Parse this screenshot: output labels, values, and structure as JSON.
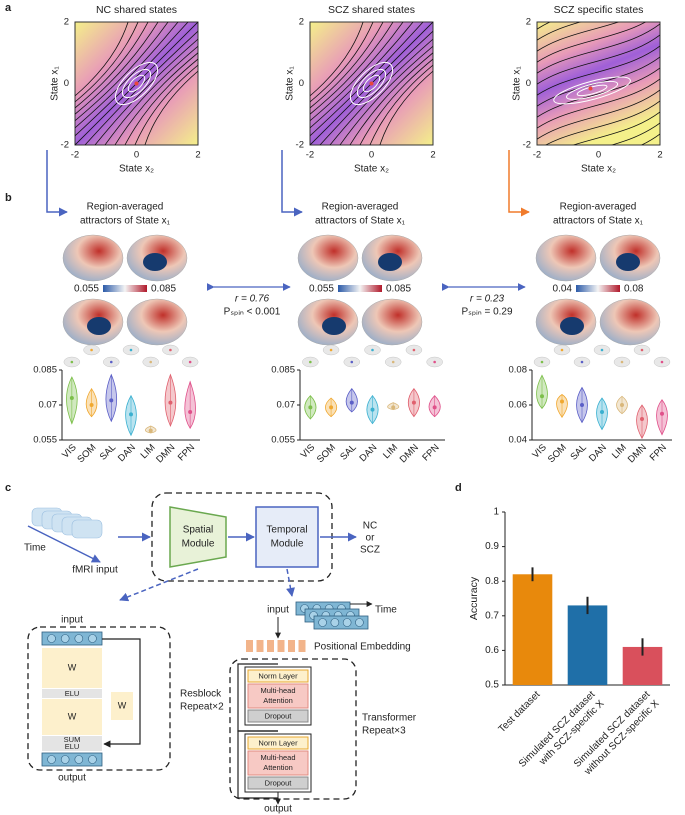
{
  "panel_labels": [
    "a",
    "b",
    "c",
    "d"
  ],
  "phase_portraits": [
    {
      "title": "NC shared states",
      "xlabel": "State x₂",
      "ylabel": "State x₁",
      "xticks": [
        -2,
        0,
        2
      ],
      "yticks": [
        -2,
        0,
        2
      ]
    },
    {
      "title": "SCZ shared states",
      "xlabel": "State x₂",
      "ylabel": "State x₁",
      "xticks": [
        -2,
        0,
        2
      ],
      "yticks": [
        -2,
        0,
        2
      ]
    },
    {
      "title": "SCZ specific states",
      "xlabel": "State x₂",
      "ylabel": "State x₁",
      "xticks": [
        -2,
        0,
        2
      ],
      "yticks": [
        -2,
        0,
        2
      ]
    }
  ],
  "attractors": [
    {
      "title": [
        "Region-averaged",
        "attractors of State x₁"
      ],
      "colorbar": [
        0.055,
        0.085
      ]
    },
    {
      "title": [
        "Region-averaged",
        "attractors of State x₁"
      ],
      "colorbar": [
        0.055,
        0.085
      ]
    },
    {
      "title": [
        "Region-averaged",
        "attractors of State x₁"
      ],
      "colorbar": [
        0.04,
        0.08
      ]
    }
  ],
  "correlations": [
    {
      "r": "r = 0.76",
      "p": "Pₛₚᵢₙ < 0.001"
    },
    {
      "r": "r = 0.23",
      "p": "Pₛₚᵢₙ = 0.29"
    }
  ],
  "diagram": {
    "time": "Time",
    "input_label": "fMRI input",
    "spatial": [
      "Spatial",
      "Module"
    ],
    "temporal": [
      "Temporal",
      "Module"
    ],
    "output": [
      "NC",
      "or",
      "SCZ"
    ],
    "resblock": {
      "input": "input",
      "w": [
        "W",
        "W",
        "W"
      ],
      "elu": [
        "ELU",
        "ELU"
      ],
      "sum": "SUM",
      "output": "output",
      "name": [
        "Resblock",
        "Repeat×2"
      ]
    },
    "transformer": {
      "input": "input",
      "time": "Time",
      "pos": "Positional Embedding",
      "layers": [
        [
          "Norm Layer"
        ],
        [
          "Multi-head",
          "Attention"
        ],
        [
          "Dropout"
        ]
      ],
      "name": [
        "Transformer",
        "Repeat×3"
      ],
      "output": "output"
    }
  },
  "chart_data": [
    {
      "type": "violin",
      "categories": [
        "VIS",
        "SOM",
        "SAL",
        "DAN",
        "LIM",
        "DMN",
        "FPN"
      ],
      "colors": [
        "#7cbf4a",
        "#f0a830",
        "#5b5fc7",
        "#3ab0d0",
        "#d9b77a",
        "#e0606e",
        "#e0508a"
      ],
      "medians": [
        0.073,
        0.07,
        0.072,
        0.066,
        0.059,
        0.071,
        0.067
      ],
      "lows": [
        0.062,
        0.065,
        0.063,
        0.057,
        0.058,
        0.061,
        0.06
      ],
      "highs": [
        0.082,
        0.077,
        0.083,
        0.074,
        0.061,
        0.083,
        0.08
      ],
      "ylim": [
        0.055,
        0.085
      ],
      "yticks": [
        0.055,
        0.07,
        0.085
      ]
    },
    {
      "type": "violin",
      "categories": [
        "VIS",
        "SOM",
        "SAL",
        "DAN",
        "LIM",
        "DMN",
        "FPN"
      ],
      "colors": [
        "#7cbf4a",
        "#f0a830",
        "#5b5fc7",
        "#3ab0d0",
        "#d9b77a",
        "#e0606e",
        "#e0508a"
      ],
      "medians": [
        0.069,
        0.069,
        0.071,
        0.068,
        0.069,
        0.071,
        0.069
      ],
      "lows": [
        0.064,
        0.065,
        0.067,
        0.062,
        0.068,
        0.065,
        0.065
      ],
      "highs": [
        0.074,
        0.073,
        0.077,
        0.074,
        0.071,
        0.077,
        0.074
      ],
      "ylim": [
        0.055,
        0.085
      ],
      "yticks": [
        0.055,
        0.07,
        0.085
      ]
    },
    {
      "type": "violin",
      "categories": [
        "VIS",
        "SOM",
        "SAL",
        "DAN",
        "LIM",
        "DMN",
        "FPN"
      ],
      "colors": [
        "#7cbf4a",
        "#f0a830",
        "#5b5fc7",
        "#3ab0d0",
        "#d9b77a",
        "#e0606e",
        "#e0508a"
      ],
      "medians": [
        0.065,
        0.062,
        0.06,
        0.056,
        0.06,
        0.052,
        0.055
      ],
      "lows": [
        0.058,
        0.053,
        0.05,
        0.046,
        0.055,
        0.041,
        0.043
      ],
      "highs": [
        0.077,
        0.066,
        0.07,
        0.064,
        0.065,
        0.06,
        0.063
      ],
      "ylim": [
        0.04,
        0.08
      ],
      "yticks": [
        0.04,
        0.06,
        0.08
      ]
    },
    {
      "type": "bar",
      "ylabel": "Accuracy",
      "categories": [
        [
          "Test dataset"
        ],
        [
          "Simulated SCZ dataset",
          "with SCZ-specific X"
        ],
        [
          "Simulated SCZ dataset",
          "without SCZ-specific X"
        ]
      ],
      "values": [
        0.82,
        0.73,
        0.61
      ],
      "errors": [
        0.02,
        0.025,
        0.025
      ],
      "colors": [
        "#e8890c",
        "#1f6fa8",
        "#d9505c"
      ],
      "ylim": [
        0.5,
        1
      ],
      "yticks": [
        0.5,
        0.6,
        0.7,
        0.8,
        0.9,
        1
      ]
    }
  ]
}
